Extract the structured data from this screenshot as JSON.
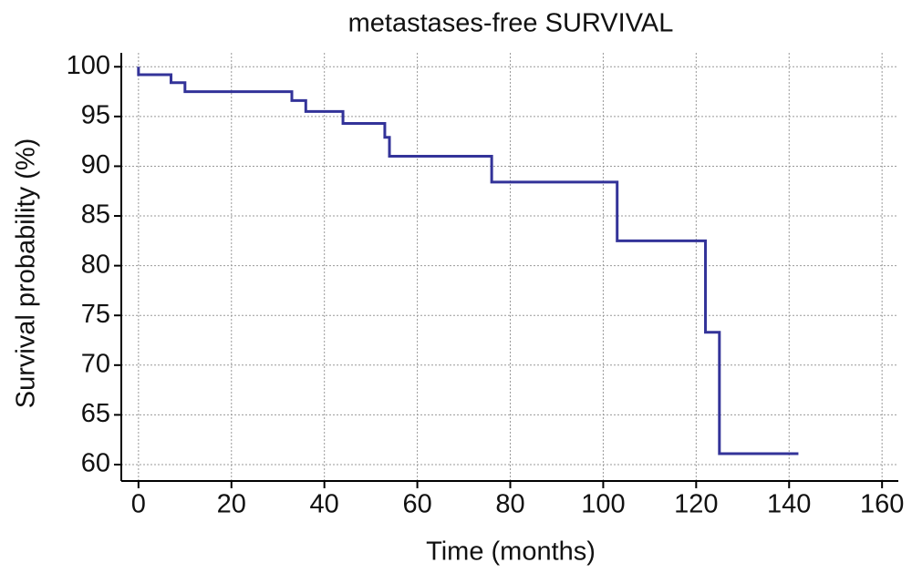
{
  "chart_data": {
    "type": "step",
    "title": "metastases-free SURVIVAL",
    "x_label": "Time (months)",
    "y_label": "Survival probability  (%)",
    "x": [
      0,
      0,
      7,
      10,
      33,
      36,
      44,
      53,
      54,
      76,
      103,
      122,
      125,
      142
    ],
    "values": [
      100,
      99.2,
      98.4,
      97.5,
      96.6,
      95.5,
      94.3,
      92.9,
      91.0,
      88.4,
      82.5,
      73.3,
      61.1,
      61.1
    ],
    "color": "#333399",
    "xlim": [
      -3.7,
      163.5
    ],
    "ylim": [
      58.35,
      101.4
    ],
    "xticks": [
      0,
      20,
      40,
      60,
      80,
      100,
      120,
      140,
      160
    ],
    "yticks": [
      60,
      65,
      70,
      75,
      80,
      85,
      90,
      95,
      100
    ],
    "grid": true
  }
}
